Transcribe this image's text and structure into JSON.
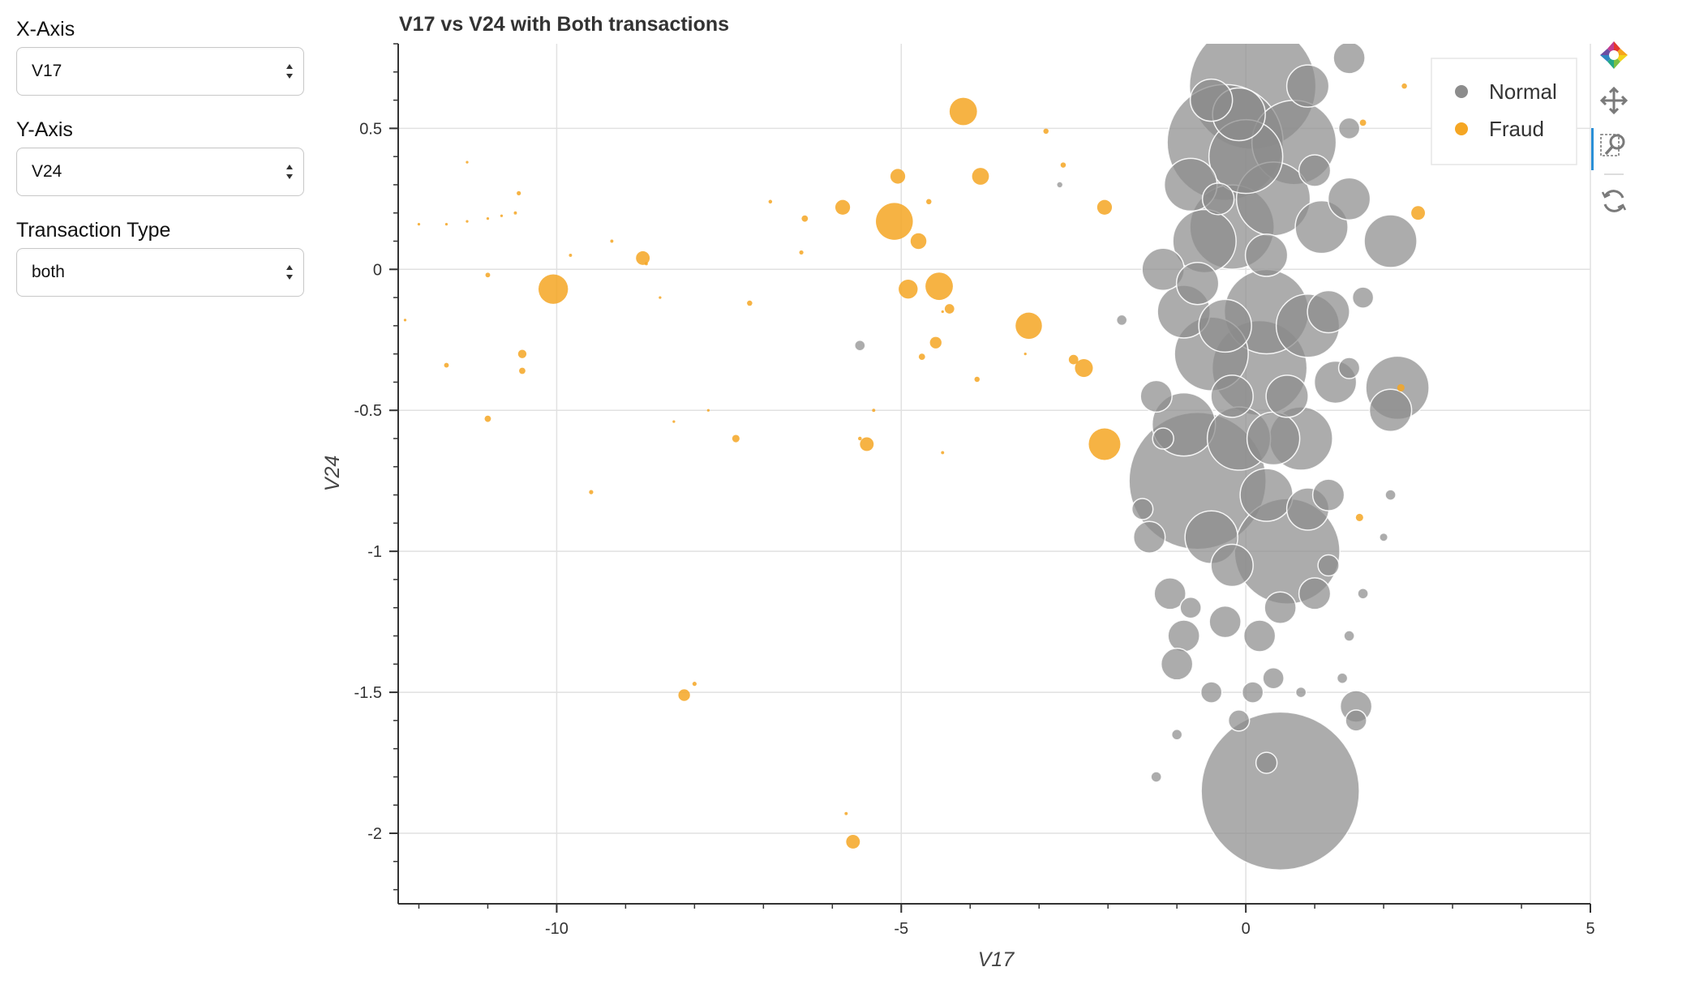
{
  "controls": {
    "x_axis": {
      "label": "X-Axis",
      "value": "V17"
    },
    "y_axis": {
      "label": "Y-Axis",
      "value": "V24"
    },
    "transaction_type": {
      "label": "Transaction Type",
      "value": "both"
    }
  },
  "colors": {
    "normal": "#8c8c8c",
    "fraud": "#f5a623",
    "grid": "#e1e1e1",
    "axis": "#333333",
    "toolbar_active": "#2a8fd6"
  },
  "toolbar": {
    "icons": [
      "bokeh-logo-icon",
      "pan-icon",
      "box-zoom-icon",
      "reset-icon"
    ],
    "active": "box-zoom-icon"
  },
  "chart_data": {
    "type": "scatter",
    "title": "V17 vs V24 with Both transactions",
    "xlabel": "V17",
    "ylabel": "V24",
    "xlim": [
      -12.3,
      5
    ],
    "ylim": [
      -2.25,
      0.8
    ],
    "xticks": [
      -10,
      -5,
      0,
      5
    ],
    "xtick_labels": [
      "-10",
      "-5",
      "0",
      "5"
    ],
    "yticks": [
      -2,
      -1.5,
      -1,
      -0.5,
      0,
      0.5
    ],
    "ytick_labels": [
      "-2",
      "-1.5",
      "-1",
      "-0.5",
      "0",
      "0.5"
    ],
    "grid": true,
    "legend_position": "top-right",
    "series": [
      {
        "name": "Normal",
        "color": "#8c8c8c",
        "points": [
          {
            "x": 0.5,
            "y": -1.85,
            "s": 15
          },
          {
            "x": -0.7,
            "y": -0.75,
            "s": 13
          },
          {
            "x": 0.1,
            "y": 0.65,
            "s": 12
          },
          {
            "x": -0.3,
            "y": 0.45,
            "s": 11
          },
          {
            "x": 0.6,
            "y": -1.0,
            "s": 10
          },
          {
            "x": 0.2,
            "y": -0.35,
            "s": 9
          },
          {
            "x": -0.2,
            "y": 0.15,
            "s": 8
          },
          {
            "x": 0.3,
            "y": -0.15,
            "s": 8
          },
          {
            "x": -0.5,
            "y": -0.3,
            "s": 7
          },
          {
            "x": 0.7,
            "y": 0.45,
            "s": 8
          },
          {
            "x": 0.9,
            "y": -0.2,
            "s": 6
          },
          {
            "x": -0.9,
            "y": -0.55,
            "s": 6
          },
          {
            "x": 0.4,
            "y": 0.25,
            "s": 7
          },
          {
            "x": -0.6,
            "y": 0.1,
            "s": 6
          },
          {
            "x": 0.8,
            "y": -0.6,
            "s": 6
          },
          {
            "x": -0.1,
            "y": -0.6,
            "s": 6
          },
          {
            "x": 0.3,
            "y": -0.8,
            "s": 5
          },
          {
            "x": -0.9,
            "y": -0.15,
            "s": 5
          },
          {
            "x": 1.1,
            "y": 0.15,
            "s": 5
          },
          {
            "x": 2.2,
            "y": -0.42,
            "s": 6
          },
          {
            "x": 2.1,
            "y": 0.1,
            "s": 5
          },
          {
            "x": 2.1,
            "y": -0.5,
            "s": 4
          },
          {
            "x": 1.3,
            "y": -0.4,
            "s": 4
          },
          {
            "x": 1.6,
            "y": -1.55,
            "s": 3
          },
          {
            "x": 1.6,
            "y": -1.6,
            "s": 2
          },
          {
            "x": -1.2,
            "y": 0.0,
            "s": 4
          },
          {
            "x": -0.8,
            "y": 0.3,
            "s": 5
          },
          {
            "x": 0.0,
            "y": 0.4,
            "s": 7
          },
          {
            "x": -0.1,
            "y": 0.55,
            "s": 5
          },
          {
            "x": -0.5,
            "y": -0.95,
            "s": 5
          },
          {
            "x": -1.4,
            "y": -0.95,
            "s": 3
          },
          {
            "x": -1.1,
            "y": -1.15,
            "s": 3
          },
          {
            "x": -0.9,
            "y": -1.3,
            "s": 3
          },
          {
            "x": -1.0,
            "y": -1.4,
            "s": 3
          },
          {
            "x": -0.2,
            "y": -1.05,
            "s": 4
          },
          {
            "x": 0.2,
            "y": -1.3,
            "s": 3
          },
          {
            "x": 0.4,
            "y": -1.45,
            "s": 2
          },
          {
            "x": 0.9,
            "y": -0.85,
            "s": 4
          },
          {
            "x": 1.2,
            "y": -0.8,
            "s": 3
          },
          {
            "x": 1.2,
            "y": -0.15,
            "s": 4
          },
          {
            "x": 1.5,
            "y": 0.25,
            "s": 4
          },
          {
            "x": 0.9,
            "y": 0.65,
            "s": 4
          },
          {
            "x": 1.5,
            "y": 0.75,
            "s": 3
          },
          {
            "x": -0.5,
            "y": 0.6,
            "s": 4
          },
          {
            "x": -1.3,
            "y": -0.45,
            "s": 3
          },
          {
            "x": 1.0,
            "y": -1.15,
            "s": 3
          },
          {
            "x": -0.3,
            "y": -1.25,
            "s": 3
          },
          {
            "x": 0.5,
            "y": -1.2,
            "s": 3
          },
          {
            "x": -0.7,
            "y": -0.05,
            "s": 4
          },
          {
            "x": 0.3,
            "y": 0.05,
            "s": 4
          },
          {
            "x": -0.2,
            "y": -0.45,
            "s": 4
          },
          {
            "x": 0.6,
            "y": -0.45,
            "s": 4
          },
          {
            "x": 1.0,
            "y": 0.35,
            "s": 3
          },
          {
            "x": -0.4,
            "y": 0.25,
            "s": 3
          },
          {
            "x": -1.8,
            "y": -0.18,
            "s": 1
          },
          {
            "x": -5.6,
            "y": -0.27,
            "s": 1
          },
          {
            "x": -2.7,
            "y": 0.3,
            "s": 0.6
          },
          {
            "x": -1.2,
            "y": -0.6,
            "s": 2
          },
          {
            "x": -1.5,
            "y": -0.85,
            "s": 2
          },
          {
            "x": -1.3,
            "y": -1.8,
            "s": 1
          },
          {
            "x": 0.3,
            "y": -1.75,
            "s": 2
          },
          {
            "x": -0.1,
            "y": -1.6,
            "s": 2
          },
          {
            "x": 1.5,
            "y": -0.35,
            "s": 2
          },
          {
            "x": 1.7,
            "y": -0.1,
            "s": 2
          },
          {
            "x": 1.5,
            "y": 0.5,
            "s": 2
          },
          {
            "x": 1.2,
            "y": -1.05,
            "s": 2
          },
          {
            "x": 2.1,
            "y": -0.8,
            "s": 1
          },
          {
            "x": 2.0,
            "y": -0.95,
            "s": 0.8
          },
          {
            "x": 1.7,
            "y": -1.15,
            "s": 1
          },
          {
            "x": 1.5,
            "y": -1.3,
            "s": 1
          },
          {
            "x": 1.4,
            "y": -1.45,
            "s": 1
          },
          {
            "x": -0.5,
            "y": -1.5,
            "s": 2
          },
          {
            "x": 0.1,
            "y": -1.5,
            "s": 2
          },
          {
            "x": 0.8,
            "y": -1.5,
            "s": 1
          },
          {
            "x": -1.0,
            "y": -1.65,
            "s": 1
          },
          {
            "x": -0.8,
            "y": -1.2,
            "s": 2
          },
          {
            "x": 0.4,
            "y": -0.6,
            "s": 5
          },
          {
            "x": -0.3,
            "y": -0.2,
            "s": 5
          }
        ]
      },
      {
        "name": "Fraud",
        "color": "#f5a623",
        "points": [
          {
            "x": -10.05,
            "y": -0.07,
            "s": 2.8
          },
          {
            "x": -5.1,
            "y": 0.17,
            "s": 3.5
          },
          {
            "x": -4.1,
            "y": 0.56,
            "s": 2.6
          },
          {
            "x": -4.45,
            "y": -0.06,
            "s": 2.6
          },
          {
            "x": -3.15,
            "y": -0.2,
            "s": 2.5
          },
          {
            "x": -2.05,
            "y": -0.62,
            "s": 3
          },
          {
            "x": -3.85,
            "y": 0.33,
            "s": 1.6
          },
          {
            "x": -5.05,
            "y": 0.33,
            "s": 1.4
          },
          {
            "x": -4.75,
            "y": 0.1,
            "s": 1.5
          },
          {
            "x": -4.9,
            "y": -0.07,
            "s": 1.8
          },
          {
            "x": -8.75,
            "y": 0.04,
            "s": 1.3
          },
          {
            "x": -5.85,
            "y": 0.22,
            "s": 1.4
          },
          {
            "x": -5.5,
            "y": -0.62,
            "s": 1.3
          },
          {
            "x": -5.7,
            "y": -2.03,
            "s": 1.3
          },
          {
            "x": -8.15,
            "y": -1.51,
            "s": 1.1
          },
          {
            "x": -2.35,
            "y": -0.35,
            "s": 1.7
          },
          {
            "x": -2.05,
            "y": 0.22,
            "s": 1.4
          },
          {
            "x": 2.5,
            "y": 0.2,
            "s": 1.3
          },
          {
            "x": -4.5,
            "y": -0.26,
            "s": 1.1
          },
          {
            "x": -4.3,
            "y": -0.14,
            "s": 0.9
          },
          {
            "x": -2.5,
            "y": -0.32,
            "s": 0.9
          },
          {
            "x": -10.5,
            "y": -0.3,
            "s": 0.8
          },
          {
            "x": -10.5,
            "y": -0.36,
            "s": 0.6
          },
          {
            "x": -11.0,
            "y": -0.53,
            "s": 0.6
          },
          {
            "x": -7.4,
            "y": -0.6,
            "s": 0.7
          },
          {
            "x": -6.4,
            "y": 0.18,
            "s": 0.6
          },
          {
            "x": -4.7,
            "y": -0.31,
            "s": 0.6
          },
          {
            "x": -4.6,
            "y": 0.24,
            "s": 0.5
          },
          {
            "x": -2.9,
            "y": 0.49,
            "s": 0.5
          },
          {
            "x": -2.65,
            "y": 0.37,
            "s": 0.5
          },
          {
            "x": -3.9,
            "y": -0.39,
            "s": 0.5
          },
          {
            "x": -7.2,
            "y": -0.12,
            "s": 0.5
          },
          {
            "x": 1.65,
            "y": -0.88,
            "s": 0.7
          },
          {
            "x": 2.25,
            "y": -0.42,
            "s": 0.7
          },
          {
            "x": 2.3,
            "y": 0.65,
            "s": 0.5
          },
          {
            "x": 1.7,
            "y": 0.52,
            "s": 0.6
          },
          {
            "x": -10.55,
            "y": 0.27,
            "s": 0.4
          },
          {
            "x": -10.6,
            "y": 0.2,
            "s": 0.3
          },
          {
            "x": -11.6,
            "y": -0.34,
            "s": 0.45
          },
          {
            "x": -11.0,
            "y": -0.02,
            "s": 0.45
          },
          {
            "x": -9.5,
            "y": -0.79,
            "s": 0.4
          },
          {
            "x": -8.0,
            "y": -1.47,
            "s": 0.4
          },
          {
            "x": -6.45,
            "y": 0.06,
            "s": 0.4
          },
          {
            "x": -6.9,
            "y": 0.24,
            "s": 0.35
          },
          {
            "x": -5.8,
            "y": -1.93,
            "s": 0.3
          },
          {
            "x": -5.6,
            "y": -0.6,
            "s": 0.35
          },
          {
            "x": -4.4,
            "y": -0.65,
            "s": 0.3
          },
          {
            "x": -5.4,
            "y": -0.5,
            "s": 0.3
          },
          {
            "x": -8.7,
            "y": 0.02,
            "s": 0.3
          },
          {
            "x": -9.8,
            "y": 0.05,
            "s": 0.3
          },
          {
            "x": -8.3,
            "y": -0.54,
            "s": 0.25
          },
          {
            "x": -7.8,
            "y": -0.5,
            "s": 0.25
          },
          {
            "x": -11.3,
            "y": 0.38,
            "s": 0.25
          },
          {
            "x": -12.2,
            "y": -0.18,
            "s": 0.25
          },
          {
            "x": -12.0,
            "y": 0.16,
            "s": 0.25
          },
          {
            "x": -11.6,
            "y": 0.16,
            "s": 0.25
          },
          {
            "x": -11.3,
            "y": 0.17,
            "s": 0.25
          },
          {
            "x": -11.0,
            "y": 0.18,
            "s": 0.25
          },
          {
            "x": -10.8,
            "y": 0.19,
            "s": 0.25
          },
          {
            "x": -9.2,
            "y": 0.1,
            "s": 0.3
          },
          {
            "x": -8.5,
            "y": -0.1,
            "s": 0.25
          },
          {
            "x": -3.2,
            "y": -0.3,
            "s": 0.25
          },
          {
            "x": -4.4,
            "y": -0.15,
            "s": 0.25
          }
        ]
      }
    ]
  }
}
